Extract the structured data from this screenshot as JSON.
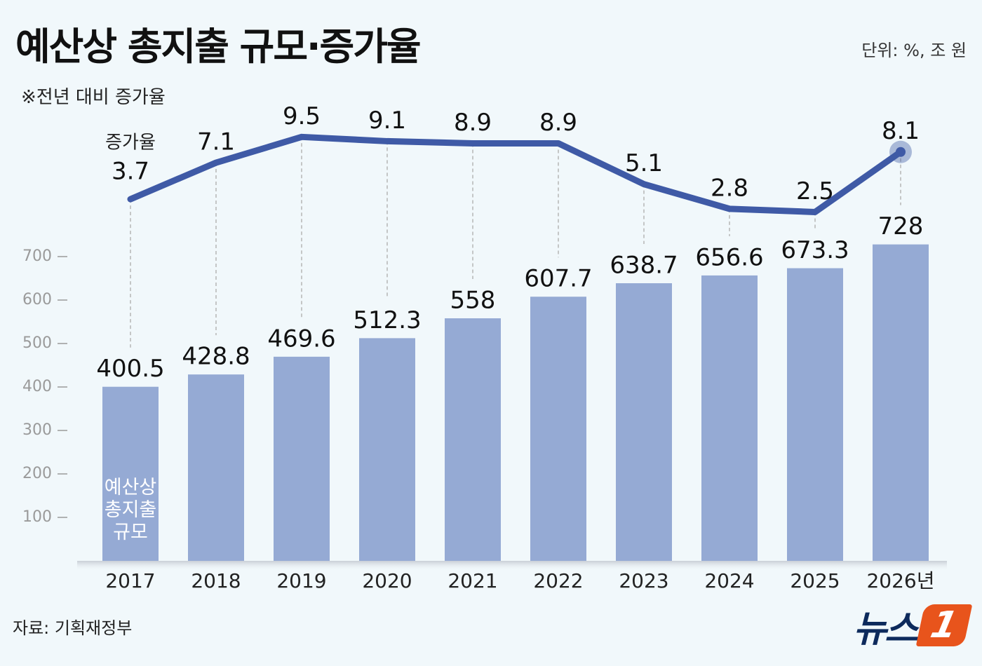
{
  "chart_data": {
    "type": "bar_line",
    "title": "예산상 총지출 규모·증가율",
    "subtitle": "※전년 대비 증가율",
    "unit": "단위: %, 조 원",
    "source": "자료: 기획재정부",
    "logo": {
      "text": "뉴스",
      "mark": "1"
    },
    "categories": [
      "2017",
      "2018",
      "2019",
      "2020",
      "2021",
      "2022",
      "2023",
      "2024",
      "2025",
      "2026년"
    ],
    "series": [
      {
        "name": "예산상 총지출 규모",
        "type": "bar",
        "color": "#95aad4",
        "values": [
          400.5,
          428.8,
          469.6,
          512.3,
          558,
          607.7,
          638.7,
          656.6,
          673.3,
          728
        ]
      },
      {
        "name": "증가율",
        "type": "line",
        "axis": "y2",
        "color": "#3f5aa6",
        "values": [
          3.7,
          7.1,
          9.5,
          9.1,
          8.9,
          8.9,
          5.1,
          2.8,
          2.5,
          8.1
        ]
      }
    ],
    "ylim": [
      0,
      1000
    ],
    "yticks": [
      100,
      200,
      300,
      400,
      500,
      600,
      700
    ],
    "y2lim": [
      -30,
      10.5
    ]
  }
}
